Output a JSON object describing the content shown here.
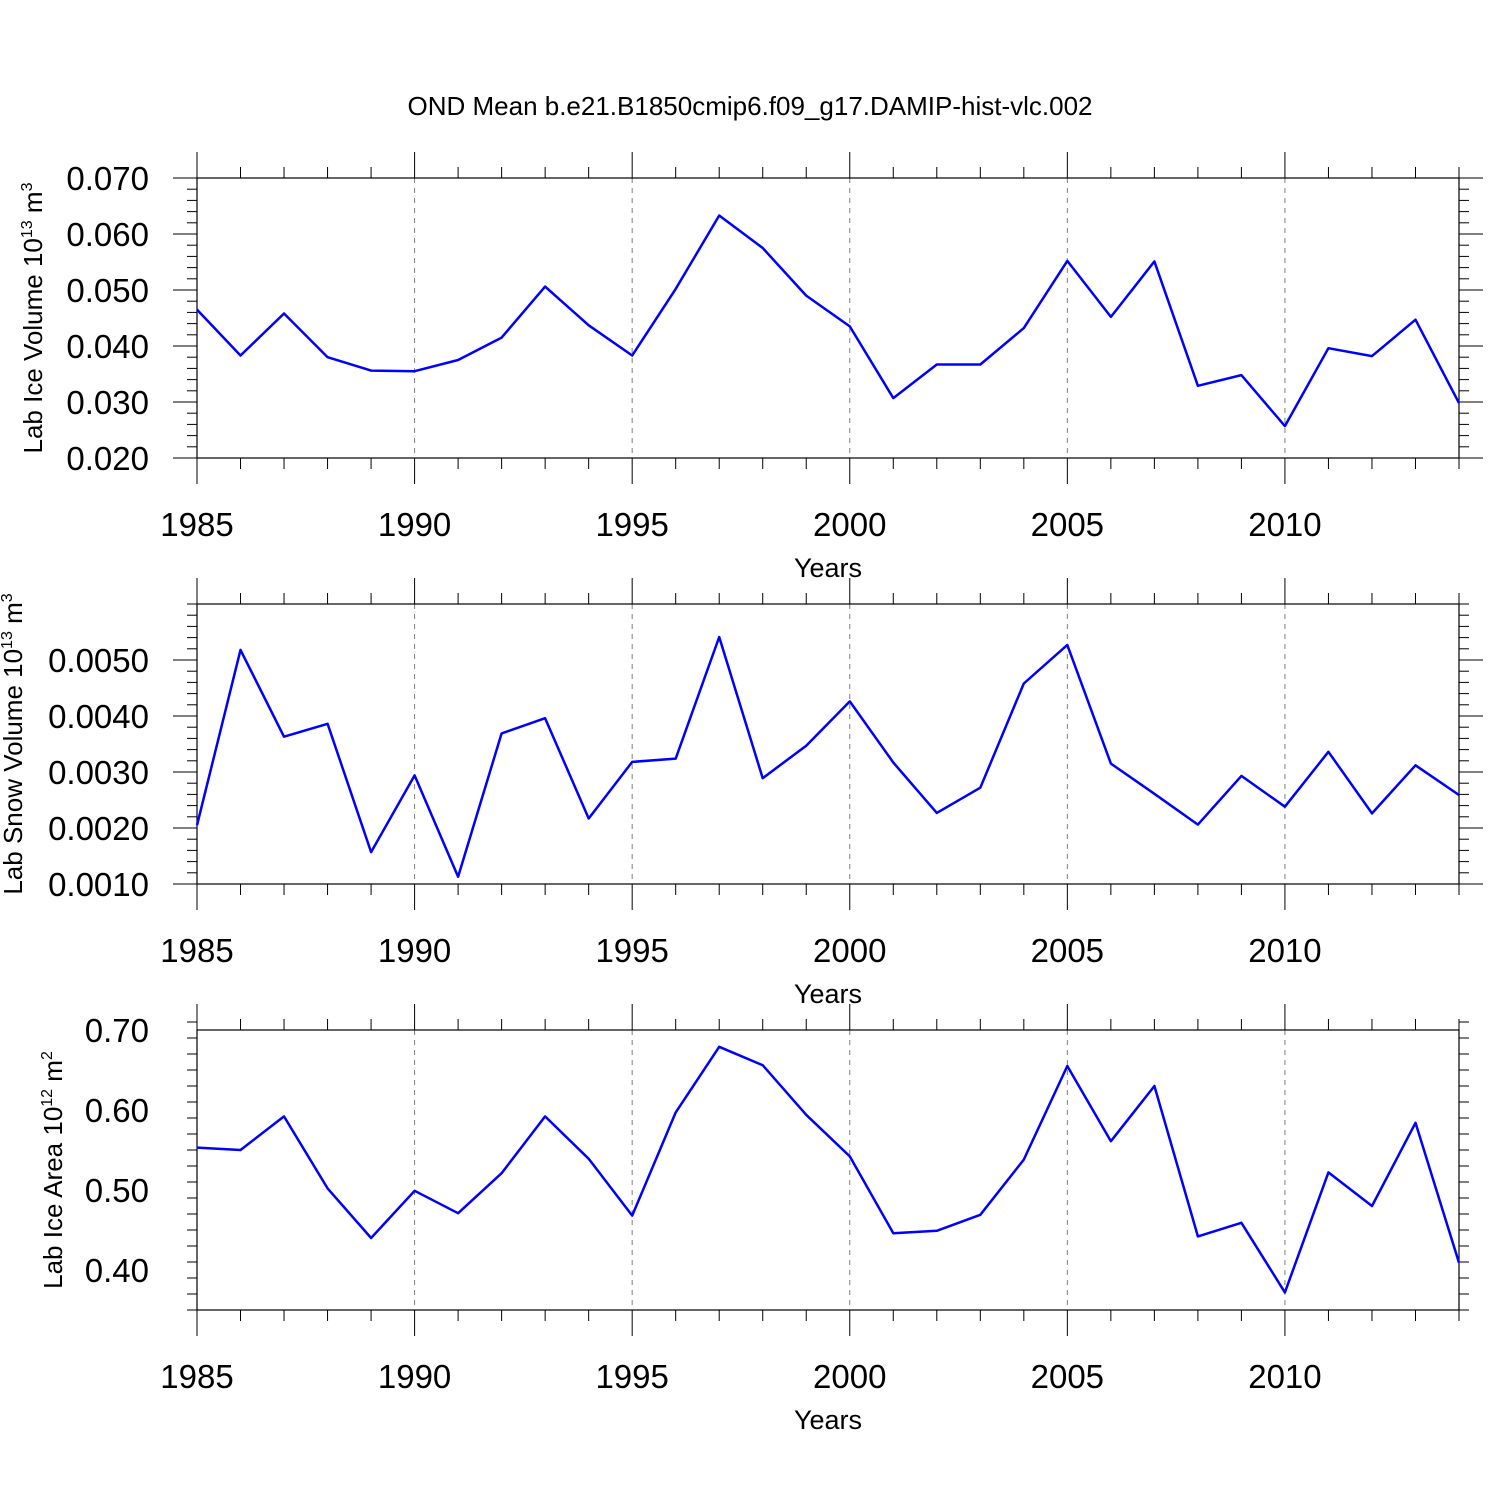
{
  "title": "OND Mean b.e21.B1850cmip6.f09_g17.DAMIP-hist-vlc.002",
  "colors": {
    "line": "#0000ff",
    "frame": "#000000",
    "grid": "#7f7f7f"
  },
  "chart_data": [
    {
      "type": "line",
      "ylabel": {
        "main": "Lab Ice Volume 10",
        "exp": "13",
        "unit": " m",
        "unit_exp": "3"
      },
      "xlabel": "Years",
      "xlim": [
        1985,
        2014
      ],
      "ylim": [
        0.02,
        0.07
      ],
      "xticks": [
        1985,
        1990,
        1995,
        2000,
        2005,
        2010
      ],
      "yticks": [
        0.02,
        0.03,
        0.04,
        0.05,
        0.06,
        0.07
      ],
      "ytick_labels": [
        "0.020",
        "0.030",
        "0.040",
        "0.050",
        "0.060",
        "0.070"
      ],
      "x_minor_step": 1,
      "y_minor_step": 0.002,
      "grid": "vertical dashed at major x ticks",
      "x": [
        1985,
        1986,
        1987,
        1988,
        1989,
        1990,
        1991,
        1992,
        1993,
        1994,
        1995,
        1996,
        1997,
        1998,
        1999,
        2000,
        2001,
        2002,
        2003,
        2004,
        2005,
        2006,
        2007,
        2008,
        2009,
        2010,
        2011,
        2012,
        2013,
        2014
      ],
      "values": [
        0.0465,
        0.0383,
        0.0458,
        0.038,
        0.0356,
        0.0355,
        0.0375,
        0.0415,
        0.0506,
        0.0437,
        0.0383,
        0.0502,
        0.0633,
        0.0575,
        0.049,
        0.0435,
        0.0307,
        0.0367,
        0.0367,
        0.0432,
        0.0552,
        0.0452,
        0.0551,
        0.0329,
        0.0348,
        0.0257,
        0.0396,
        0.0382,
        0.0447,
        0.0298
      ]
    },
    {
      "type": "line",
      "ylabel": {
        "main": "Lab Snow Volume 10",
        "exp": "13",
        "unit": " m",
        "unit_exp": "3"
      },
      "xlabel": "Years",
      "xlim": [
        1985,
        2014
      ],
      "ylim": [
        0.001,
        0.006
      ],
      "xticks": [
        1985,
        1990,
        1995,
        2000,
        2005,
        2010
      ],
      "yticks": [
        0.001,
        0.002,
        0.003,
        0.004,
        0.005
      ],
      "ytick_labels": [
        "0.0010",
        "0.0020",
        "0.0030",
        "0.0040",
        "0.0050"
      ],
      "x_minor_step": 1,
      "y_minor_step": 0.0002,
      "grid": "vertical dashed at major x ticks",
      "x": [
        1985,
        1986,
        1987,
        1988,
        1989,
        1990,
        1991,
        1992,
        1993,
        1994,
        1995,
        1996,
        1997,
        1998,
        1999,
        2000,
        2001,
        2002,
        2003,
        2004,
        2005,
        2006,
        2007,
        2008,
        2009,
        2010,
        2011,
        2012,
        2013,
        2014
      ],
      "values": [
        0.00205,
        0.00518,
        0.00363,
        0.00386,
        0.00157,
        0.00294,
        0.00113,
        0.00369,
        0.00396,
        0.00217,
        0.00318,
        0.00324,
        0.00541,
        0.00289,
        0.00347,
        0.00426,
        0.00317,
        0.00227,
        0.00272,
        0.00458,
        0.00527,
        0.00315,
        0.00261,
        0.00206,
        0.00293,
        0.00238,
        0.00336,
        0.00226,
        0.00312,
        0.00259
      ]
    },
    {
      "type": "line",
      "ylabel": {
        "main": "Lab Ice Area 10",
        "exp": "12",
        "unit": " m",
        "unit_exp": "2"
      },
      "xlabel": "Years",
      "xlim": [
        1985,
        2014
      ],
      "ylim": [
        0.35,
        0.7
      ],
      "xticks": [
        1985,
        1990,
        1995,
        2000,
        2005,
        2010
      ],
      "yticks": [
        0.4,
        0.5,
        0.6,
        0.7
      ],
      "ytick_labels": [
        "0.40",
        "0.50",
        "0.60",
        "0.70"
      ],
      "x_minor_step": 1,
      "y_minor_step": 0.02,
      "grid": "vertical dashed at major x ticks",
      "x": [
        1985,
        1986,
        1987,
        1988,
        1989,
        1990,
        1991,
        1992,
        1993,
        1994,
        1995,
        1996,
        1997,
        1998,
        1999,
        2000,
        2001,
        2002,
        2003,
        2004,
        2005,
        2006,
        2007,
        2008,
        2009,
        2010,
        2011,
        2012,
        2013,
        2014
      ],
      "values": [
        0.553,
        0.55,
        0.592,
        0.502,
        0.44,
        0.499,
        0.471,
        0.521,
        0.592,
        0.539,
        0.468,
        0.597,
        0.679,
        0.656,
        0.594,
        0.542,
        0.446,
        0.449,
        0.469,
        0.538,
        0.655,
        0.561,
        0.63,
        0.442,
        0.459,
        0.372,
        0.522,
        0.48,
        0.584,
        0.409
      ]
    }
  ]
}
